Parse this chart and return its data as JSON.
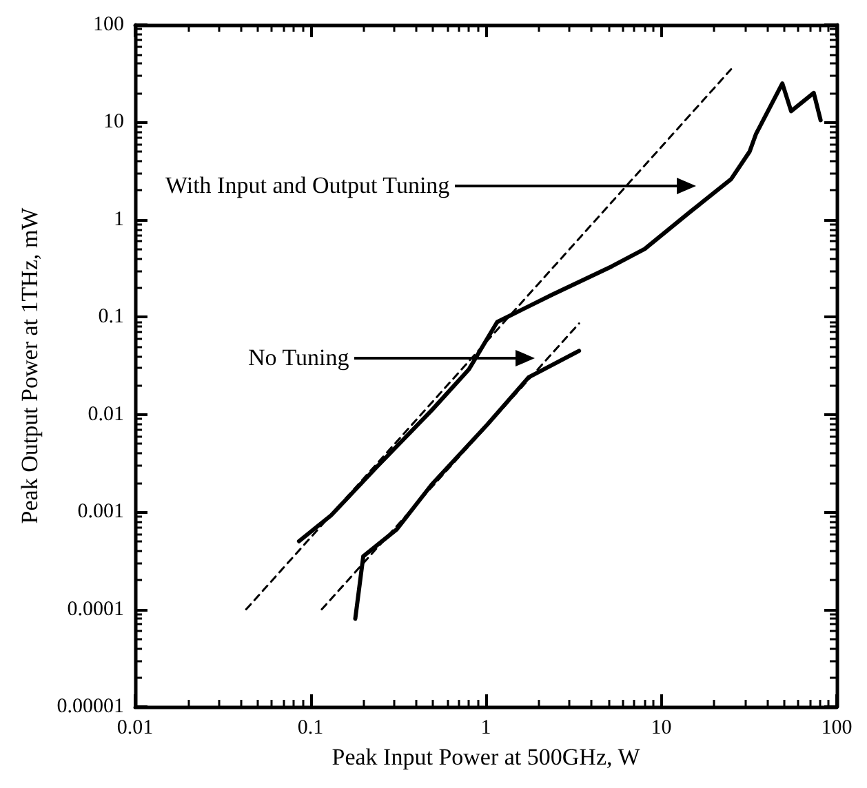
{
  "chart_data": {
    "type": "line",
    "xlabel": "Peak Input Power at 500GHz, W",
    "ylabel": "Peak Output Power at 1THz, mW",
    "log": "xy",
    "grid": false,
    "marker": "none",
    "xlim": [
      0.01,
      100
    ],
    "xticks": [
      0.01,
      0.1,
      1,
      10,
      100
    ],
    "ylim": [
      1e-05,
      100
    ],
    "yticks": [
      {
        "value": 1e-05,
        "label": "0.00001"
      },
      0.0001,
      0.001,
      0.01,
      0.1,
      1,
      10,
      100
    ],
    "series": [
      {
        "color": "#000000",
        "line_style": "solid",
        "x": [
          0.086,
          0.131,
          0.239,
          0.49,
          0.8,
          1.16,
          2.39,
          5.2,
          8.05,
          14.6,
          25,
          31.9,
          34.7,
          49,
          55,
          74,
          81
        ],
        "values": [
          0.0005,
          0.00092,
          0.0029,
          0.011,
          0.029,
          0.089,
          0.17,
          0.33,
          0.5,
          1.2,
          2.6,
          5,
          7.6,
          25,
          13,
          20,
          10.5
        ]
      },
      {
        "color": "#000000",
        "line_style": "solid",
        "x": [
          0.18,
          0.2,
          0.31,
          0.49,
          1.02,
          1.75,
          3.4
        ],
        "values": [
          8e-05,
          0.00035,
          0.00066,
          0.0019,
          0.0079,
          0.024,
          0.045
        ]
      },
      {
        "color": "#000000",
        "line_style": "dashed",
        "x": [
          0.043,
          25
        ],
        "values": [
          0.0001,
          35
        ]
      },
      {
        "color": "#000000",
        "line_style": "dashed",
        "x": [
          0.116,
          3.4
        ],
        "values": [
          0.0001,
          0.086
        ]
      }
    ],
    "annotations": [
      "With Input and Output Tuning",
      "No Tuning"
    ]
  }
}
